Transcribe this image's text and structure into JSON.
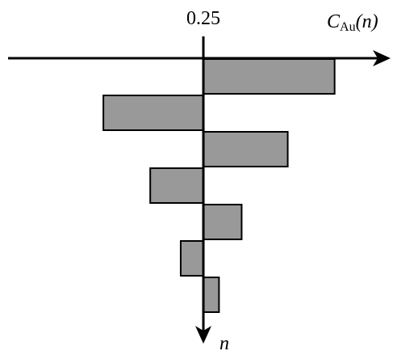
{
  "chart_data": {
    "type": "bar",
    "orientation": "horizontal",
    "x_label": {
      "symbol": "C",
      "subscript": "Au",
      "argument": "(n)"
    },
    "y_label": "n",
    "categories": [
      null,
      null,
      null,
      null,
      null,
      null,
      null
    ],
    "values": [
      0.418,
      0.122,
      0.358,
      0.182,
      0.299,
      0.221,
      0.27
    ],
    "color": "#999999",
    "xlim": [
      0,
      0.485
    ],
    "xticks": [
      0.25
    ],
    "grid": false
  }
}
